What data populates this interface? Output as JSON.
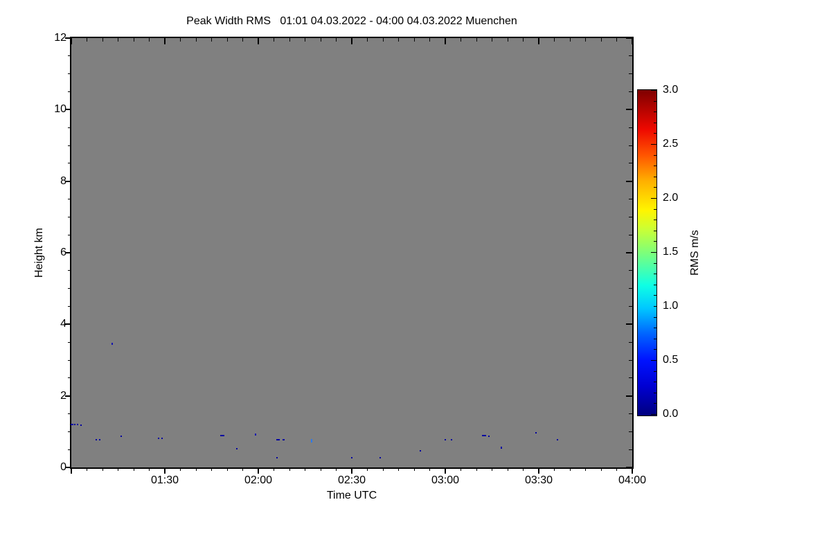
{
  "chart_data": {
    "type": "heatmap",
    "title": "Peak Width RMS   01:01 04.03.2022 - 04:00 04.03.2022 Muenchen",
    "xlabel": "Time UTC",
    "ylabel": "Height km",
    "x_axis": {
      "start": "01:00",
      "end": "04:00",
      "major_tick_labels": [
        "01:30",
        "02:00",
        "02:30",
        "03:00",
        "03:30",
        "04:00"
      ],
      "major_tick_minutes": [
        30,
        60,
        90,
        120,
        150,
        180
      ],
      "minor_tick_step_minutes": 5,
      "total_minutes": 180
    },
    "y_axis": {
      "min": 0,
      "max": 12,
      "major_ticks": [
        0,
        2,
        4,
        6,
        8,
        10,
        12
      ],
      "minor_tick_step": 0.5
    },
    "background": "no-data-gray",
    "colorbar": {
      "label": "RMS m/s",
      "min": 0.0,
      "max": 3.0,
      "tick_labels": [
        "0.0",
        "0.5",
        "1.0",
        "1.5",
        "2.0",
        "2.5",
        "3.0"
      ],
      "tick_values": [
        0.0,
        0.5,
        1.0,
        1.5,
        2.0,
        2.5,
        3.0
      ],
      "minor_tick_step": 0.1,
      "gradient_stops": [
        {
          "pos": 0.0,
          "color": "#00007E"
        },
        {
          "pos": 0.09,
          "color": "#0000D2"
        },
        {
          "pos": 0.17,
          "color": "#0013FF"
        },
        {
          "pos": 0.25,
          "color": "#0063FF"
        },
        {
          "pos": 0.33,
          "color": "#00C8FF"
        },
        {
          "pos": 0.4,
          "color": "#0FFFE4"
        },
        {
          "pos": 0.5,
          "color": "#7DFF7A"
        },
        {
          "pos": 0.57,
          "color": "#C8FF37"
        },
        {
          "pos": 0.63,
          "color": "#FFF500"
        },
        {
          "pos": 0.72,
          "color": "#FFB000"
        },
        {
          "pos": 0.8,
          "color": "#FF5500"
        },
        {
          "pos": 0.88,
          "color": "#EE0800"
        },
        {
          "pos": 1.0,
          "color": "#7E0000"
        }
      ]
    },
    "points": [
      {
        "time": "01:00",
        "tmin": 0,
        "height_km": 1.2,
        "rms": 0.15,
        "color": "#0000A0",
        "w": 4,
        "hp": 2
      },
      {
        "time": "01:01",
        "tmin": 1,
        "height_km": 1.2,
        "rms": 0.15,
        "color": "#0000A0",
        "w": 2,
        "hp": 2
      },
      {
        "time": "01:02",
        "tmin": 2,
        "height_km": 1.2,
        "rms": 0.15,
        "color": "#0000A0",
        "w": 2,
        "hp": 2
      },
      {
        "time": "01:03",
        "tmin": 3,
        "height_km": 1.18,
        "rms": 0.15,
        "color": "#0000A0",
        "w": 2,
        "hp": 2
      },
      {
        "time": "01:08",
        "tmin": 8,
        "height_km": 0.78,
        "rms": 0.15,
        "color": "#0000A0",
        "w": 2,
        "hp": 2
      },
      {
        "time": "01:09",
        "tmin": 9,
        "height_km": 0.78,
        "rms": 0.15,
        "color": "#0000A0",
        "w": 2,
        "hp": 2
      },
      {
        "time": "01:13",
        "tmin": 13,
        "height_km": 3.44,
        "rms": 0.2,
        "color": "#1515B0",
        "w": 2,
        "hp": 3
      },
      {
        "time": "01:16",
        "tmin": 16,
        "height_km": 0.87,
        "rms": 0.15,
        "color": "#0000A0",
        "w": 2,
        "hp": 2
      },
      {
        "time": "01:28",
        "tmin": 28,
        "height_km": 0.82,
        "rms": 0.15,
        "color": "#0000A0",
        "w": 2,
        "hp": 2
      },
      {
        "time": "01:29",
        "tmin": 29,
        "height_km": 0.82,
        "rms": 0.15,
        "color": "#0000A0",
        "w": 2,
        "hp": 2
      },
      {
        "time": "01:48",
        "tmin": 48,
        "height_km": 0.89,
        "rms": 0.15,
        "color": "#0000A0",
        "w": 6,
        "hp": 2
      },
      {
        "time": "01:53",
        "tmin": 53,
        "height_km": 0.52,
        "rms": 0.15,
        "color": "#0000A0",
        "w": 2,
        "hp": 2
      },
      {
        "time": "01:59",
        "tmin": 59,
        "height_km": 0.91,
        "rms": 0.2,
        "color": "#1515B0",
        "w": 2,
        "hp": 3
      },
      {
        "time": "02:06",
        "tmin": 66,
        "height_km": 0.78,
        "rms": 0.15,
        "color": "#0000A0",
        "w": 5,
        "hp": 2
      },
      {
        "time": "02:08",
        "tmin": 68,
        "height_km": 0.78,
        "rms": 0.15,
        "color": "#0000A0",
        "w": 3,
        "hp": 2
      },
      {
        "time": "02:06",
        "tmin": 66,
        "height_km": 0.27,
        "rms": 0.15,
        "color": "#0000A0",
        "w": 2,
        "hp": 2
      },
      {
        "time": "02:17",
        "tmin": 77,
        "height_km": 0.73,
        "rms": 0.85,
        "color": "#2E79E8",
        "w": 2,
        "hp": 5
      },
      {
        "time": "02:30",
        "tmin": 90,
        "height_km": 0.27,
        "rms": 0.15,
        "color": "#0000A0",
        "w": 2,
        "hp": 2
      },
      {
        "time": "02:39",
        "tmin": 99,
        "height_km": 0.27,
        "rms": 0.15,
        "color": "#0000A0",
        "w": 2,
        "hp": 2
      },
      {
        "time": "02:52",
        "tmin": 112,
        "height_km": 0.47,
        "rms": 0.15,
        "color": "#0000A0",
        "w": 2,
        "hp": 2
      },
      {
        "time": "03:00",
        "tmin": 120,
        "height_km": 0.78,
        "rms": 0.15,
        "color": "#0000A0",
        "w": 2,
        "hp": 2
      },
      {
        "time": "03:02",
        "tmin": 122,
        "height_km": 0.78,
        "rms": 0.15,
        "color": "#0000A0",
        "w": 2,
        "hp": 2
      },
      {
        "time": "03:12",
        "tmin": 132,
        "height_km": 0.89,
        "rms": 0.15,
        "color": "#0000A0",
        "w": 6,
        "hp": 2
      },
      {
        "time": "03:14",
        "tmin": 134,
        "height_km": 0.87,
        "rms": 0.15,
        "color": "#0000A0",
        "w": 2,
        "hp": 2
      },
      {
        "time": "03:18",
        "tmin": 138,
        "height_km": 0.55,
        "rms": 0.15,
        "color": "#0000A0",
        "w": 2,
        "hp": 3
      },
      {
        "time": "03:29",
        "tmin": 149,
        "height_km": 0.97,
        "rms": 0.15,
        "color": "#0000A0",
        "w": 2,
        "hp": 2
      },
      {
        "time": "03:36",
        "tmin": 156,
        "height_km": 0.78,
        "rms": 0.15,
        "color": "#0000A0",
        "w": 2,
        "hp": 2
      }
    ]
  },
  "colors": {
    "plot_background": "#808080",
    "frame": "#000000",
    "page_background": "#ffffff"
  }
}
